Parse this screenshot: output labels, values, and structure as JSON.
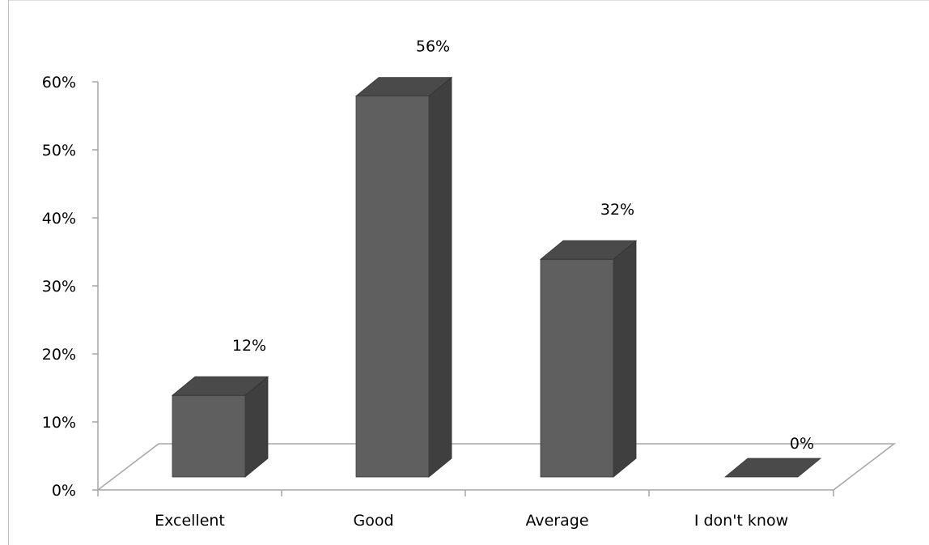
{
  "chart_data": {
    "type": "bar",
    "categories": [
      "Excellent",
      "Good",
      "Average",
      "I don't know"
    ],
    "values": [
      12,
      56,
      32,
      0
    ],
    "value_labels": [
      "12%",
      "56%",
      "32%",
      "0%"
    ],
    "yticks": [
      "0%",
      "10%",
      "20%",
      "30%",
      "40%",
      "50%",
      "60%"
    ],
    "ylim": [
      0,
      60
    ],
    "grid": false,
    "legend": "none",
    "colors": {
      "bar_front": "#5f5f5f",
      "bar_top": "#4a4a4a",
      "bar_side": "#3f3f3f",
      "axis": "#a6a6a6",
      "floor": "#a6a6a6"
    }
  }
}
